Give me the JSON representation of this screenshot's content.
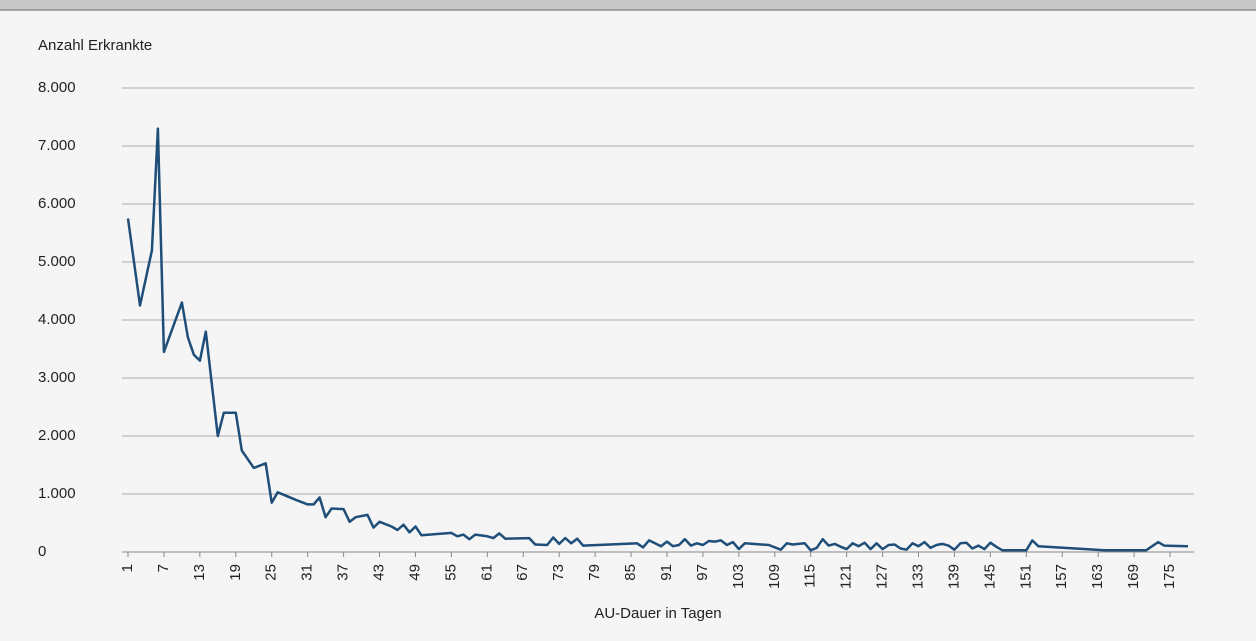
{
  "chart_data": {
    "type": "line",
    "ylabel": "Anzahl Erkrankte",
    "xlabel": "AU-Dauer in Tagen",
    "xlim": [
      0,
      179
    ],
    "xticks": [
      1,
      7,
      13,
      19,
      25,
      31,
      37,
      43,
      49,
      55,
      61,
      67,
      73,
      79,
      85,
      91,
      97,
      103,
      109,
      115,
      121,
      127,
      133,
      139,
      145,
      151,
      157,
      163,
      169,
      175
    ],
    "ylim": [
      0,
      8000
    ],
    "yticks": [
      0,
      {
        "value": 1000,
        "label": "1.000"
      },
      {
        "value": 2000,
        "label": "2.000"
      },
      {
        "value": 3000,
        "label": "3.000"
      },
      {
        "value": 4000,
        "label": "4.000"
      },
      {
        "value": 5000,
        "label": "5.000"
      },
      {
        "value": 6000,
        "label": "6.000"
      },
      {
        "value": 7000,
        "label": "7.000"
      },
      {
        "value": 8000,
        "label": "8.000"
      }
    ],
    "grid": true,
    "color": "#1f4e79",
    "x": [
      1,
      3,
      5,
      6,
      7,
      10,
      11,
      12,
      13,
      14,
      16,
      17,
      19,
      20,
      22,
      24,
      25,
      26,
      29,
      31,
      32,
      33,
      34,
      35,
      37,
      38,
      39,
      41,
      42,
      43,
      45,
      46,
      47,
      48,
      49,
      50,
      55,
      56,
      57,
      58,
      59,
      61,
      62,
      63,
      64,
      68,
      69,
      71,
      72,
      73,
      74,
      75,
      76,
      77,
      86,
      87,
      88,
      89,
      90,
      91,
      92,
      93,
      94,
      95,
      96,
      97,
      98,
      99,
      100,
      101,
      102,
      103,
      104,
      108,
      110,
      111,
      112,
      113,
      114,
      115,
      116,
      117,
      118,
      119,
      120,
      121,
      122,
      123,
      124,
      125,
      126,
      127,
      128,
      129,
      130,
      131,
      132,
      133,
      134,
      135,
      136,
      137,
      138,
      139,
      140,
      141,
      142,
      143,
      144,
      145,
      146,
      147,
      151,
      152,
      153,
      164,
      171,
      173,
      174,
      178
    ],
    "values": [
      5750,
      4250,
      5200,
      7300,
      3450,
      4300,
      3700,
      3400,
      3300,
      3800,
      2000,
      2400,
      2400,
      1750,
      1450,
      1530,
      850,
      1030,
      900,
      820,
      820,
      940,
      600,
      750,
      740,
      520,
      600,
      640,
      420,
      520,
      440,
      380,
      470,
      340,
      440,
      290,
      330,
      270,
      300,
      220,
      300,
      270,
      240,
      320,
      230,
      240,
      130,
      120,
      250,
      140,
      240,
      150,
      230,
      110,
      150,
      80,
      200,
      150,
      100,
      180,
      100,
      120,
      220,
      110,
      150,
      120,
      190,
      180,
      200,
      120,
      170,
      50,
      150,
      120,
      40,
      150,
      130,
      140,
      150,
      30,
      70,
      220,
      110,
      140,
      90,
      50,
      150,
      100,
      160,
      50,
      150,
      50,
      120,
      130,
      60,
      40,
      150,
      100,
      170,
      70,
      120,
      140,
      110,
      40,
      150,
      160,
      60,
      110,
      50,
      160,
      90,
      30,
      30,
      200,
      100,
      30,
      30,
      170,
      110,
      100
    ]
  }
}
